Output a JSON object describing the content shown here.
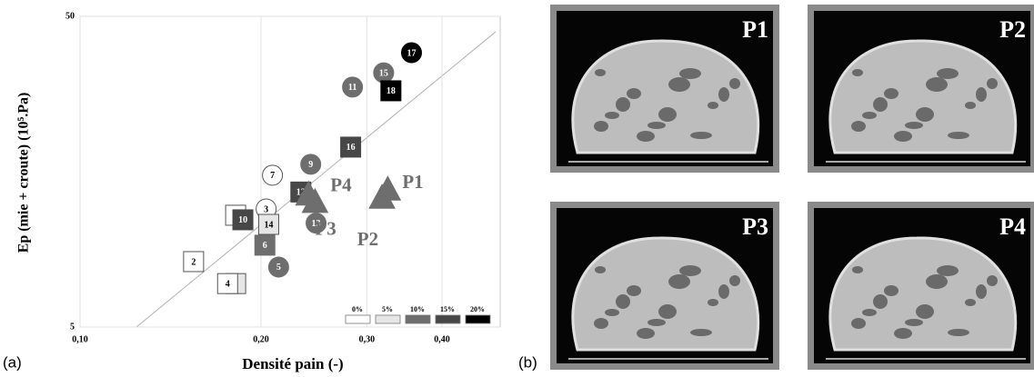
{
  "chart_data": {
    "type": "scatter",
    "xlabel": "Densité pain (-)",
    "ylabel": "Ep (mie + croute) (10⁵.Pa)",
    "log_x": true,
    "log_y": true,
    "xlim": [
      0.1,
      0.5
    ],
    "ylim": [
      5,
      50
    ],
    "xticks": [
      {
        "value": 0.1,
        "label": "0,10"
      },
      {
        "value": 0.2,
        "label": "0,20"
      },
      {
        "value": 0.3,
        "label": "0,30"
      },
      {
        "value": 0.4,
        "label": "0,40"
      }
    ],
    "yticks": [
      5,
      50
    ],
    "grid": true,
    "legend": [
      {
        "name": "0%",
        "color": "#ffffff"
      },
      {
        "name": "5%",
        "color": "#e6e6e6"
      },
      {
        "name": "10%",
        "color": "#6e6e6e"
      },
      {
        "name": "15%",
        "color": "#474747"
      },
      {
        "name": "20%",
        "color": "#000000"
      }
    ],
    "points": [
      {
        "label": "1",
        "x": 0.1815,
        "y": 6.9,
        "level": 1,
        "shape": "square"
      },
      {
        "label": "2",
        "x": 0.1545,
        "y": 8.12,
        "level": 0,
        "shape": "square"
      },
      {
        "label": "3",
        "x": 0.204,
        "y": 12.0,
        "level": 0,
        "shape": "circle"
      },
      {
        "label": "4",
        "x": 0.176,
        "y": 6.9,
        "level": 0,
        "shape": "square"
      },
      {
        "label": "5",
        "x": 0.214,
        "y": 7.8,
        "level": 2,
        "shape": "circle"
      },
      {
        "label": "6",
        "x": 0.203,
        "y": 9.17,
        "level": 2,
        "shape": "square"
      },
      {
        "label": "7",
        "x": 0.209,
        "y": 15.4,
        "level": 0,
        "shape": "circle"
      },
      {
        "label": "8",
        "x": 0.1815,
        "y": 11.45,
        "level": 0,
        "shape": "square"
      },
      {
        "label": "9",
        "x": 0.242,
        "y": 16.7,
        "level": 2,
        "shape": "circle"
      },
      {
        "label": "10",
        "x": 0.1866,
        "y": 11.07,
        "level": 3,
        "shape": "square"
      },
      {
        "label": "11",
        "x": 0.284,
        "y": 29.6,
        "level": 2,
        "shape": "circle"
      },
      {
        "label": "12",
        "x": 0.233,
        "y": 13.6,
        "level": 3,
        "shape": "square"
      },
      {
        "label": "13",
        "x": 0.247,
        "y": 10.8,
        "level": 2,
        "shape": "circle"
      },
      {
        "label": "14",
        "x": 0.206,
        "y": 10.7,
        "level": 1,
        "shape": "square"
      },
      {
        "label": "15",
        "x": 0.32,
        "y": 32.9,
        "level": 2,
        "shape": "circle"
      },
      {
        "label": "16",
        "x": 0.282,
        "y": 18.97,
        "level": 3,
        "shape": "square"
      },
      {
        "label": "17",
        "x": 0.356,
        "y": 38.2,
        "level": 4,
        "shape": "circle"
      },
      {
        "label": "18",
        "x": 0.329,
        "y": 28.8,
        "level": 4,
        "shape": "square"
      },
      {
        "label": "P1",
        "x": 0.325,
        "y": 13.7,
        "level": 2,
        "shape": "triangle"
      },
      {
        "label": "P2",
        "x": 0.318,
        "y": 12.9,
        "level": 2,
        "shape": "triangle"
      },
      {
        "label": "P3",
        "x": 0.246,
        "y": 12.5,
        "level": 2,
        "shape": "triangle"
      },
      {
        "label": "P4",
        "x": 0.24,
        "y": 13.2,
        "level": 2,
        "shape": "triangle"
      }
    ]
  },
  "panel_labels": [
    "(a)",
    "(b)"
  ],
  "photos": [
    "P1",
    "P2",
    "P3",
    "P4"
  ]
}
